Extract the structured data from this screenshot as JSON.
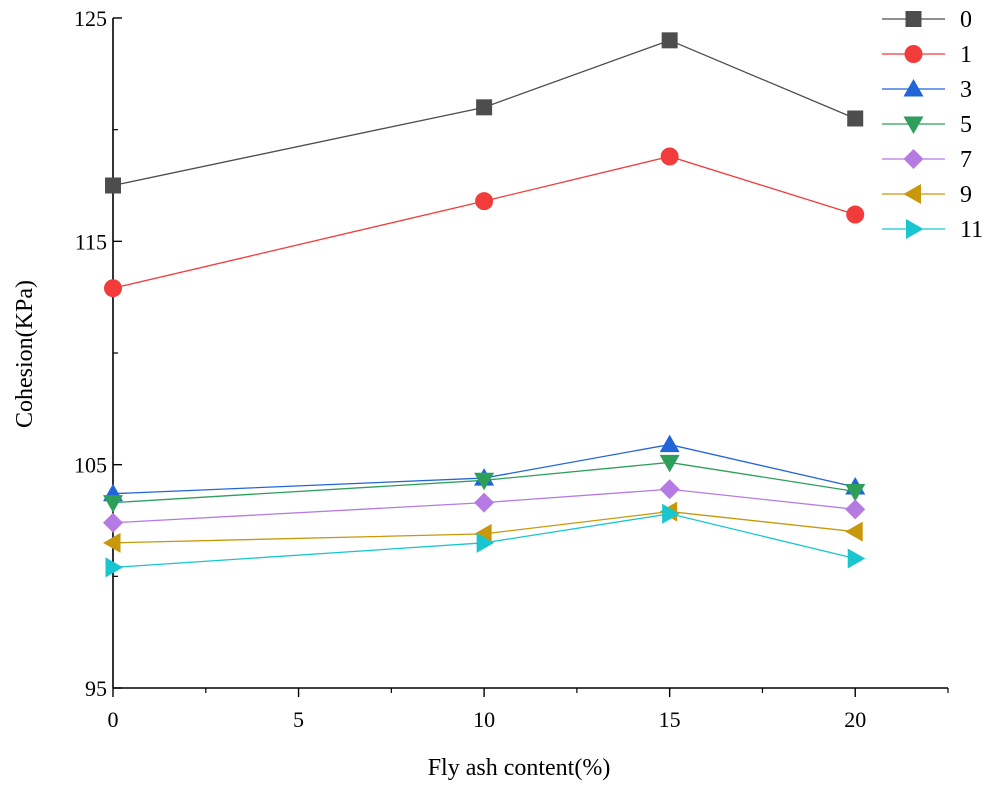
{
  "chart_data": {
    "type": "line",
    "title": "",
    "xlabel": "Fly ash content(%)",
    "ylabel": "Cohesion(KPa)",
    "xlim": [
      0,
      22.5
    ],
    "ylim": [
      95,
      125
    ],
    "xticks": [
      0,
      5,
      10,
      15,
      20
    ],
    "yticks": [
      95,
      105,
      115,
      125
    ],
    "x": [
      0,
      10,
      15,
      20
    ],
    "legend_position": "top-right",
    "series": [
      {
        "name": "0",
        "values": [
          117.5,
          121.0,
          124.0,
          120.5
        ],
        "color": "#4d4d4d",
        "marker": "square"
      },
      {
        "name": "1",
        "values": [
          112.9,
          116.8,
          118.8,
          116.2
        ],
        "color": "#f23b3b",
        "marker": "circle"
      },
      {
        "name": "3",
        "values": [
          103.7,
          104.4,
          105.9,
          104.0
        ],
        "color": "#2166d9",
        "marker": "triangle-up"
      },
      {
        "name": "5",
        "values": [
          103.3,
          104.3,
          105.1,
          103.8
        ],
        "color": "#2e9e5b",
        "marker": "triangle-down"
      },
      {
        "name": "7",
        "values": [
          102.4,
          103.3,
          103.9,
          103.0
        ],
        "color": "#b57be3",
        "marker": "diamond"
      },
      {
        "name": "9",
        "values": [
          101.5,
          101.9,
          102.9,
          102.0
        ],
        "color": "#c9980a",
        "marker": "triangle-left"
      },
      {
        "name": "11",
        "values": [
          100.4,
          101.5,
          102.8,
          100.8
        ],
        "color": "#17c6cf",
        "marker": "triangle-right"
      }
    ]
  }
}
